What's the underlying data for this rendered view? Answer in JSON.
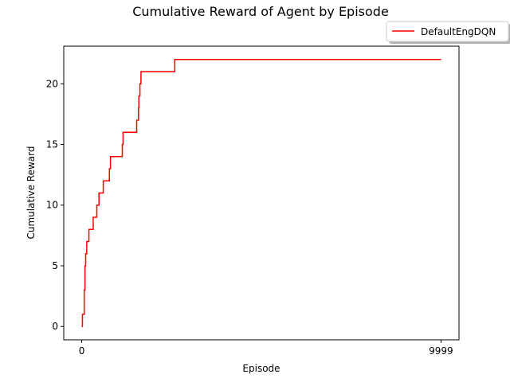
{
  "chart_data": {
    "type": "line",
    "title": "Cumulative Reward of Agent by Episode",
    "xlabel": "Episode",
    "ylabel": "Cumulative Reward",
    "xlim": [
      -500,
      10500
    ],
    "ylim": [
      -1.1,
      23.1
    ],
    "xticks": [
      0,
      9999
    ],
    "xtick_labels": [
      "0",
      "9999"
    ],
    "yticks": [
      0,
      5,
      10,
      15,
      20
    ],
    "ytick_labels": [
      "0",
      "5",
      "10",
      "15",
      "20"
    ],
    "grid": false,
    "legend": "top-right, outside plot area",
    "series": [
      {
        "name": "DefaultEngDQN",
        "color": "#ff0000",
        "step": true,
        "x": [
          0,
          20,
          70,
          90,
          110,
          140,
          200,
          320,
          420,
          480,
          600,
          770,
          800,
          1130,
          1150,
          1530,
          1580,
          1590,
          1620,
          1650,
          2590,
          9999
        ],
        "y": [
          0,
          1,
          3,
          5,
          6,
          7,
          8,
          9,
          10,
          11,
          12,
          13,
          14,
          15,
          16,
          17,
          18,
          19,
          20,
          21,
          22,
          22
        ]
      }
    ]
  }
}
